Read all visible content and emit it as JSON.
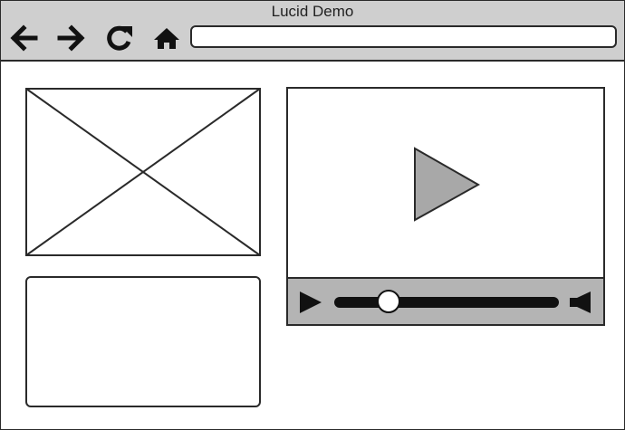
{
  "window": {
    "title": "Lucid Demo"
  },
  "toolbar": {
    "icons": [
      "arrow-left-icon",
      "arrow-right-icon",
      "refresh-icon",
      "home-icon"
    ],
    "url": {
      "value": "",
      "placeholder": ""
    }
  },
  "video": {
    "progress": 0.24
  },
  "colors": {
    "chrome": "#cfcfcf",
    "controls": "#b4b4b4",
    "play_fill": "#a8a8a8",
    "stroke": "#2a2a2a"
  }
}
